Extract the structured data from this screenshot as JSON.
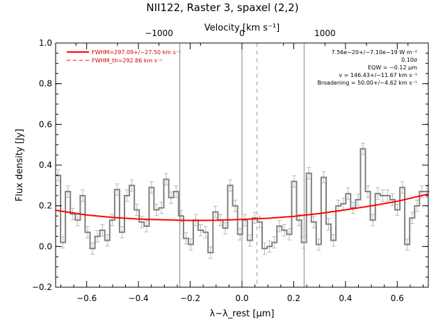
{
  "chart_data": {
    "type": "line",
    "title": "NII122, Raster 3, spaxel (2,2)",
    "xlabel": "λ−λ_rest [μm]",
    "ylabel": "Flux density [Jy]",
    "top_xlabel": "Velocity [km s⁻¹]",
    "xlim": [
      -0.72,
      0.72
    ],
    "ylim": [
      -0.2,
      1.0
    ],
    "top_xlim": [
      -2245,
      2245
    ],
    "xticks": [
      -0.6,
      -0.4,
      -0.2,
      0.0,
      0.2,
      0.4,
      0.6
    ],
    "xtick_labels": [
      "−0.6",
      "−0.4",
      "−0.2",
      "0.0",
      "0.2",
      "0.4",
      "0.6"
    ],
    "yticks": [
      -0.2,
      0.0,
      0.2,
      0.4,
      0.6,
      0.8,
      1.0
    ],
    "ytick_labels": [
      "−0.2",
      "0.0",
      "0.2",
      "0.4",
      "0.6",
      "0.8",
      "1.0"
    ],
    "top_xticks": [
      -1000,
      0,
      1000
    ],
    "top_xtick_labels": [
      "−1000",
      "0",
      "1000"
    ],
    "vlines_solid": [
      -0.24,
      0.0,
      0.24
    ],
    "vlines_dashed": [
      0.058
    ],
    "legend": {
      "position": "top-left",
      "entries": [
        {
          "label": "FWHM=297.09+/−27.50 km s⁻¹",
          "style": "solid",
          "color": "#ff0000"
        },
        {
          "label": "FWHM_th=292.86 km s⁻¹",
          "style": "dashed",
          "color": "#ff0000"
        }
      ]
    },
    "annotations": [
      "7.56e−20+/−7.10e−19 W m⁻²",
      "0.10σ",
      "EQW = −0.12 μm",
      "v = 146.43+/−11.67 km s⁻¹",
      "Broadening = 50.00+/−4.62 km s⁻¹"
    ],
    "series": [
      {
        "type": "step",
        "color": "#808080",
        "x": [
          -0.72,
          -0.701,
          -0.682,
          -0.663,
          -0.644,
          -0.625,
          -0.606,
          -0.587,
          -0.568,
          -0.549,
          -0.53,
          -0.511,
          -0.492,
          -0.473,
          -0.454,
          -0.435,
          -0.416,
          -0.397,
          -0.378,
          -0.359,
          -0.34,
          -0.321,
          -0.302,
          -0.283,
          -0.264,
          -0.245,
          -0.226,
          -0.207,
          -0.188,
          -0.169,
          -0.15,
          -0.131,
          -0.112,
          -0.093,
          -0.074,
          -0.055,
          -0.036,
          -0.017,
          0.002,
          0.021,
          0.04,
          0.059,
          0.078,
          0.097,
          0.116,
          0.135,
          0.154,
          0.173,
          0.192,
          0.211,
          0.23,
          0.249,
          0.268,
          0.287,
          0.306,
          0.325,
          0.344,
          0.363,
          0.382,
          0.401,
          0.42,
          0.439,
          0.458,
          0.477,
          0.496,
          0.515,
          0.534,
          0.553,
          0.572,
          0.591,
          0.61,
          0.629,
          0.648,
          0.667,
          0.686,
          0.705
        ],
        "y": [
          0.35,
          0.02,
          0.27,
          0.16,
          0.13,
          0.25,
          0.07,
          -0.01,
          0.05,
          0.08,
          0.03,
          0.13,
          0.28,
          0.07,
          0.25,
          0.3,
          0.18,
          0.12,
          0.1,
          0.29,
          0.18,
          0.19,
          0.33,
          0.24,
          0.27,
          0.15,
          0.04,
          0.01,
          0.13,
          0.08,
          0.07,
          -0.03,
          0.17,
          0.13,
          0.09,
          0.3,
          0.2,
          0.06,
          0.13,
          0.03,
          0.14,
          0.12,
          -0.01,
          0.0,
          0.02,
          0.1,
          0.08,
          0.06,
          0.32,
          0.13,
          0.02,
          0.36,
          0.12,
          0.01,
          0.34,
          0.11,
          0.03,
          0.2,
          0.21,
          0.26,
          0.19,
          0.23,
          0.48,
          0.27,
          0.13,
          0.26,
          0.25,
          0.25,
          0.23,
          0.18,
          0.29,
          0.01,
          0.14,
          0.2,
          0.27,
          0.27
        ],
        "yerr": 0.028
      },
      {
        "type": "line",
        "color": "#ff0000",
        "x": [
          -0.72,
          -0.6,
          -0.5,
          -0.4,
          -0.3,
          -0.2,
          -0.1,
          0.0,
          0.1,
          0.2,
          0.3,
          0.4,
          0.5,
          0.6,
          0.72
        ],
        "y": [
          0.178,
          0.155,
          0.143,
          0.135,
          0.131,
          0.128,
          0.129,
          0.133,
          0.139,
          0.148,
          0.162,
          0.18,
          0.2,
          0.222,
          0.258
        ]
      }
    ]
  }
}
